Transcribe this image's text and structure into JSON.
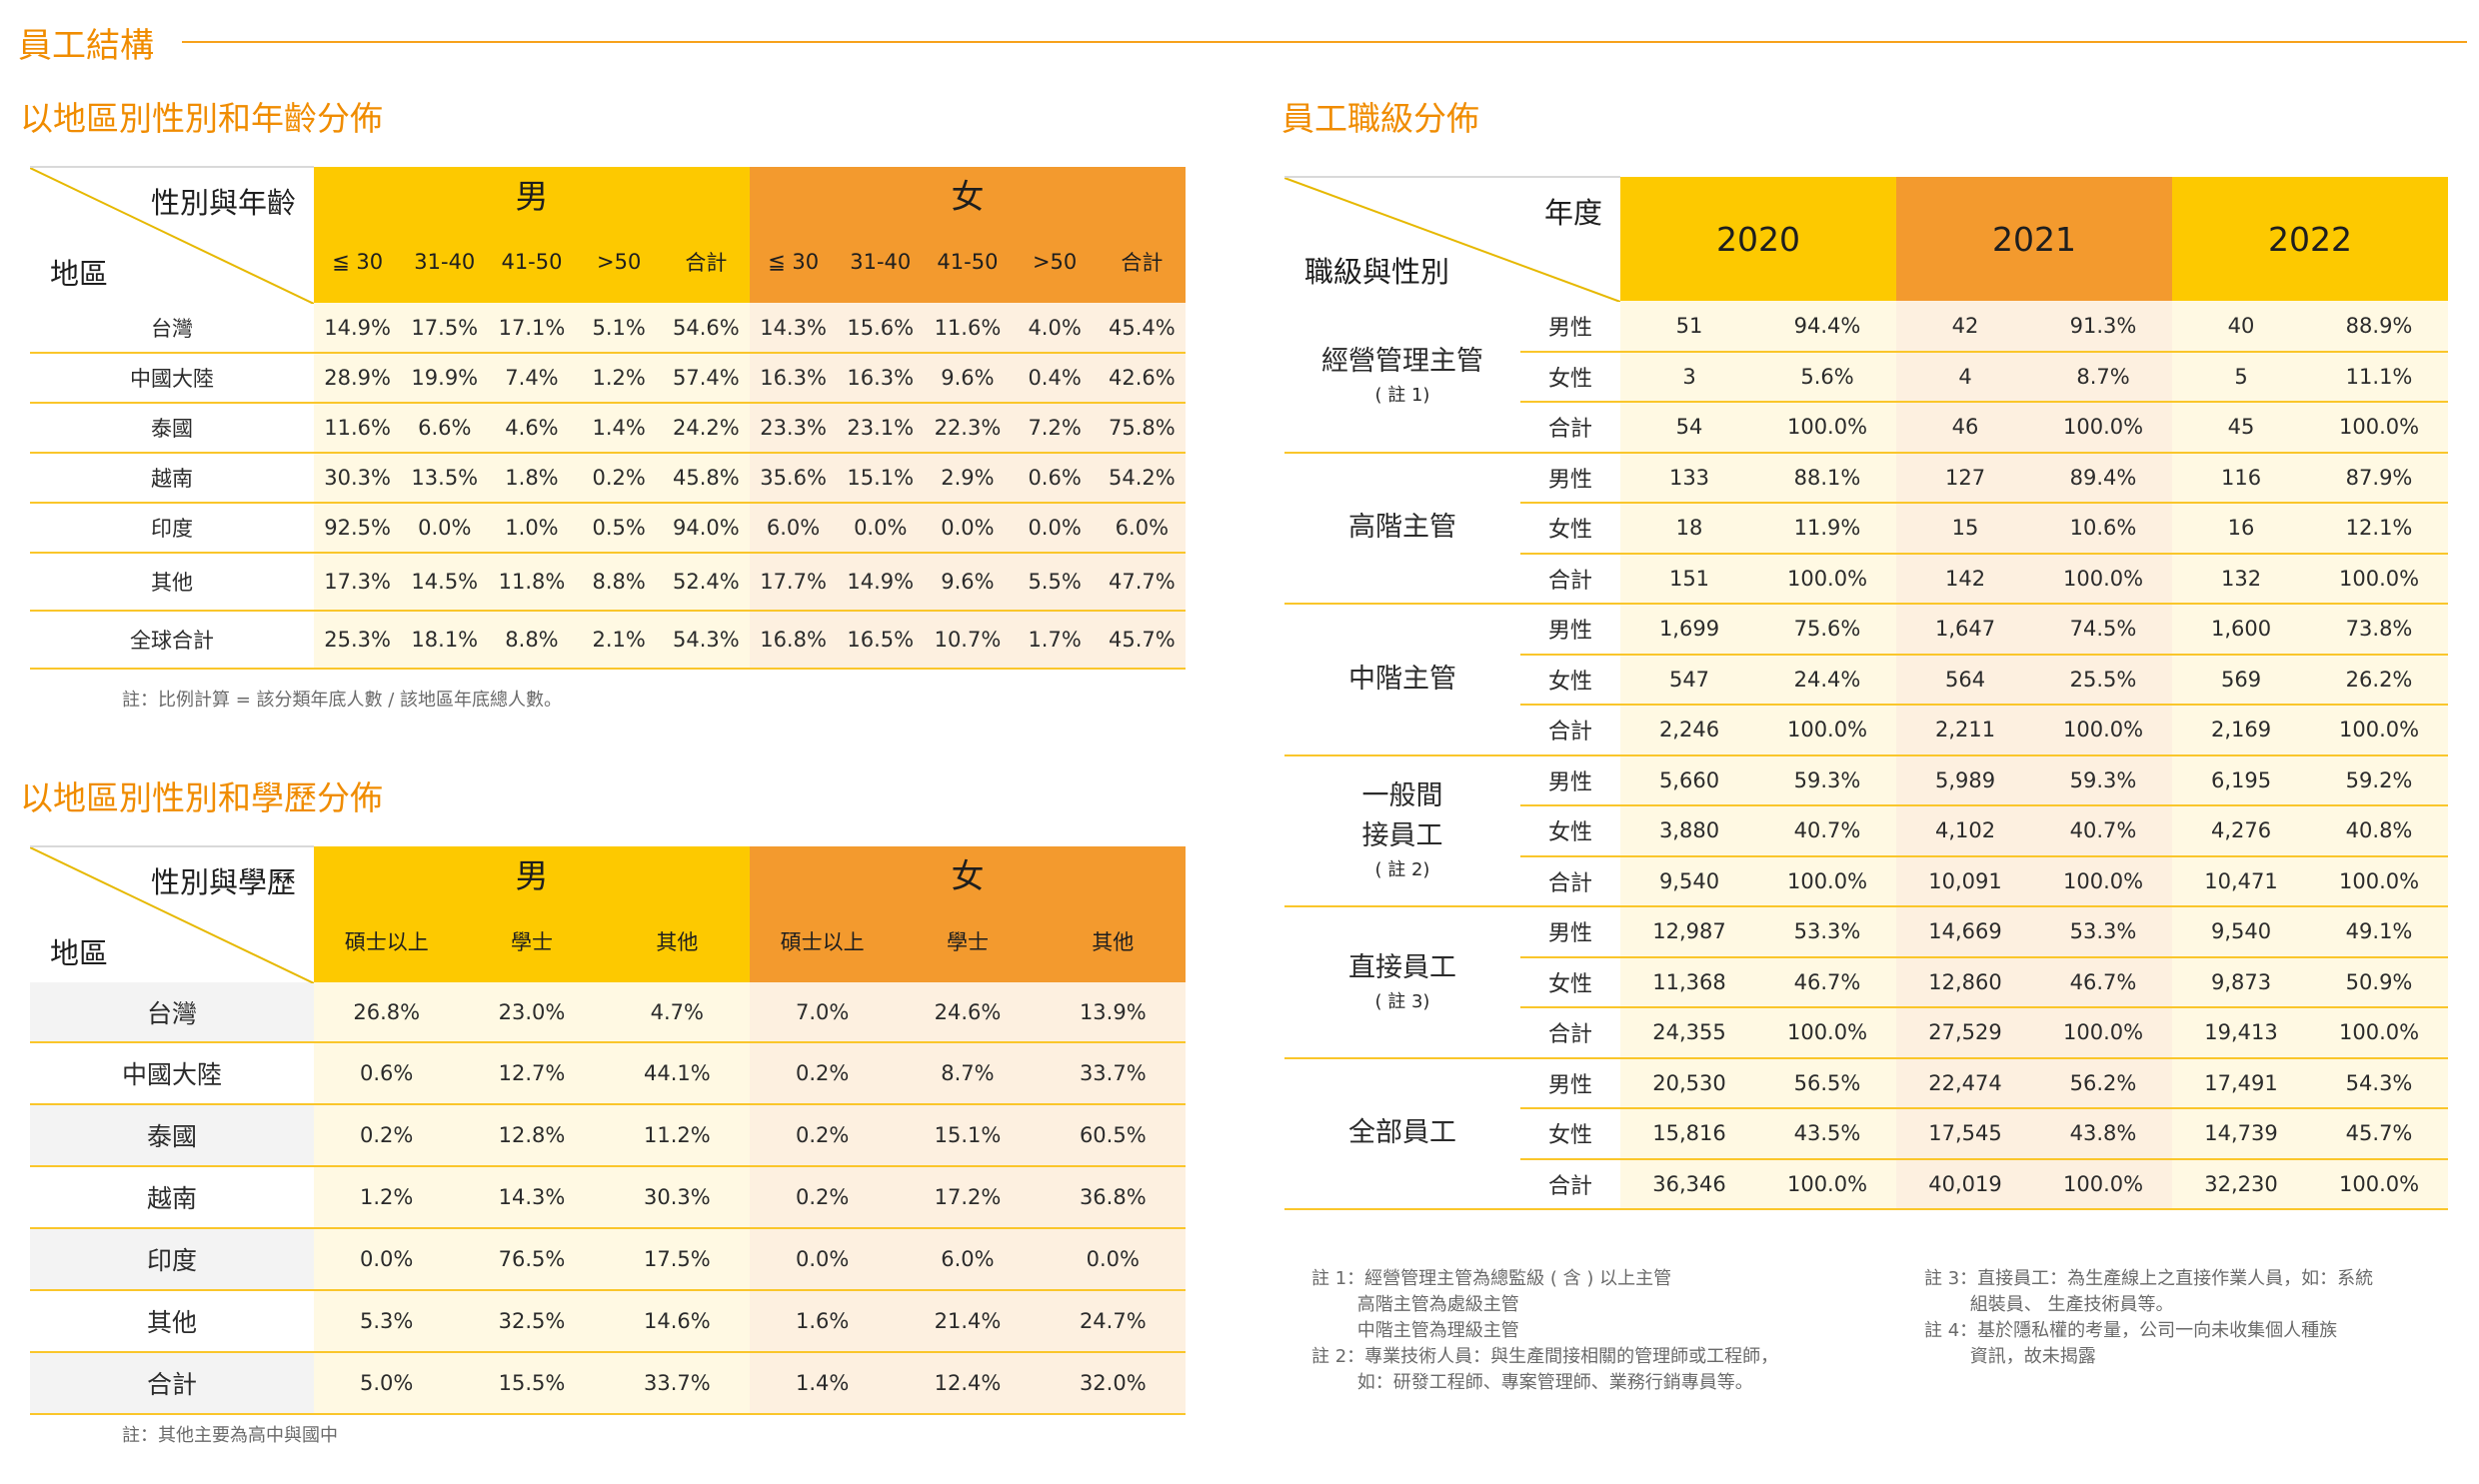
{
  "page": {
    "title": "員工結構"
  },
  "table1": {
    "title": "以地區別性別和年齡分佈",
    "corner_top": "性別與年齡",
    "corner_bottom": "地區",
    "male_label": "男",
    "female_label": "女",
    "subheads": [
      "≦ 30",
      "31-40",
      "41-50",
      ">50",
      "合計",
      "≦ 30",
      "31-40",
      "41-50",
      ">50",
      "合計"
    ],
    "rows": [
      {
        "region": "台灣",
        "values": [
          "14.9%",
          "17.5%",
          "17.1%",
          "5.1%",
          "54.6%",
          "14.3%",
          "15.6%",
          "11.6%",
          "4.0%",
          "45.4%"
        ]
      },
      {
        "region": "中國大陸",
        "values": [
          "28.9%",
          "19.9%",
          "7.4%",
          "1.2%",
          "57.4%",
          "16.3%",
          "16.3%",
          "9.6%",
          "0.4%",
          "42.6%"
        ]
      },
      {
        "region": "泰國",
        "values": [
          "11.6%",
          "6.6%",
          "4.6%",
          "1.4%",
          "24.2%",
          "23.3%",
          "23.1%",
          "22.3%",
          "7.2%",
          "75.8%"
        ]
      },
      {
        "region": "越南",
        "values": [
          "30.3%",
          "13.5%",
          "1.8%",
          "0.2%",
          "45.8%",
          "35.6%",
          "15.1%",
          "2.9%",
          "0.6%",
          "54.2%"
        ]
      },
      {
        "region": "印度",
        "values": [
          "92.5%",
          "0.0%",
          "1.0%",
          "0.5%",
          "94.0%",
          "6.0%",
          "0.0%",
          "0.0%",
          "0.0%",
          "6.0%"
        ]
      },
      {
        "region": "其他",
        "values": [
          "17.3%",
          "14.5%",
          "11.8%",
          "8.8%",
          "52.4%",
          "17.7%",
          "14.9%",
          "9.6%",
          "5.5%",
          "47.7%"
        ]
      },
      {
        "region": "全球合計",
        "values": [
          "25.3%",
          "18.1%",
          "8.8%",
          "2.1%",
          "54.3%",
          "16.8%",
          "16.5%",
          "10.7%",
          "1.7%",
          "45.7%"
        ]
      }
    ],
    "note": "註：比例計算 = 該分類年底人數 / 該地區年底總人數。"
  },
  "table2": {
    "title": "以地區別性別和學歷分佈",
    "corner_top": "性別與學歷",
    "corner_bottom": "地區",
    "male_label": "男",
    "female_label": "女",
    "subheads": [
      "碩士以上",
      "學士",
      "其他",
      "碩士以上",
      "學士",
      "其他"
    ],
    "rows": [
      {
        "region": "台灣",
        "values": [
          "26.8%",
          "23.0%",
          "4.7%",
          "7.0%",
          "24.6%",
          "13.9%"
        ]
      },
      {
        "region": "中國大陸",
        "values": [
          "0.6%",
          "12.7%",
          "44.1%",
          "0.2%",
          "8.7%",
          "33.7%"
        ]
      },
      {
        "region": "泰國",
        "values": [
          "0.2%",
          "12.8%",
          "11.2%",
          "0.2%",
          "15.1%",
          "60.5%"
        ]
      },
      {
        "region": "越南",
        "values": [
          "1.2%",
          "14.3%",
          "30.3%",
          "0.2%",
          "17.2%",
          "36.8%"
        ]
      },
      {
        "region": "印度",
        "values": [
          "0.0%",
          "76.5%",
          "17.5%",
          "0.0%",
          "6.0%",
          "0.0%"
        ]
      },
      {
        "region": "其他",
        "values": [
          "5.3%",
          "32.5%",
          "14.6%",
          "1.6%",
          "21.4%",
          "24.7%"
        ]
      },
      {
        "region": "合計",
        "values": [
          "5.0%",
          "15.5%",
          "33.7%",
          "1.4%",
          "12.4%",
          "32.0%"
        ]
      }
    ],
    "note": "註：其他主要為高中與國中"
  },
  "table3": {
    "title": "員工職級分佈",
    "corner_top": "年度",
    "corner_bottom": "職級與性別",
    "years": [
      "2020",
      "2021",
      "2022"
    ],
    "groups": [
      {
        "name_lines": [
          "經營管理主管"
        ],
        "note": "( 註 1)",
        "rows": [
          {
            "gender": "男性",
            "values": [
              "51",
              "94.4%",
              "42",
              "91.3%",
              "40",
              "88.9%"
            ]
          },
          {
            "gender": "女性",
            "values": [
              "3",
              "5.6%",
              "4",
              "8.7%",
              "5",
              "11.1%"
            ]
          },
          {
            "gender": "合計",
            "values": [
              "54",
              "100.0%",
              "46",
              "100.0%",
              "45",
              "100.0%"
            ]
          }
        ]
      },
      {
        "name_lines": [
          "高階主管"
        ],
        "note": "",
        "rows": [
          {
            "gender": "男性",
            "values": [
              "133",
              "88.1%",
              "127",
              "89.4%",
              "116",
              "87.9%"
            ]
          },
          {
            "gender": "女性",
            "values": [
              "18",
              "11.9%",
              "15",
              "10.6%",
              "16",
              "12.1%"
            ]
          },
          {
            "gender": "合計",
            "values": [
              "151",
              "100.0%",
              "142",
              "100.0%",
              "132",
              "100.0%"
            ]
          }
        ]
      },
      {
        "name_lines": [
          "中階主管"
        ],
        "note": "",
        "rows": [
          {
            "gender": "男性",
            "values": [
              "1,699",
              "75.6%",
              "1,647",
              "74.5%",
              "1,600",
              "73.8%"
            ]
          },
          {
            "gender": "女性",
            "values": [
              "547",
              "24.4%",
              "564",
              "25.5%",
              "569",
              "26.2%"
            ]
          },
          {
            "gender": "合計",
            "values": [
              "2,246",
              "100.0%",
              "2,211",
              "100.0%",
              "2,169",
              "100.0%"
            ]
          }
        ]
      },
      {
        "name_lines": [
          "一般間",
          "接員工"
        ],
        "note": "( 註 2)",
        "rows": [
          {
            "gender": "男性",
            "values": [
              "5,660",
              "59.3%",
              "5,989",
              "59.3%",
              "6,195",
              "59.2%"
            ]
          },
          {
            "gender": "女性",
            "values": [
              "3,880",
              "40.7%",
              "4,102",
              "40.7%",
              "4,276",
              "40.8%"
            ]
          },
          {
            "gender": "合計",
            "values": [
              "9,540",
              "100.0%",
              "10,091",
              "100.0%",
              "10,471",
              "100.0%"
            ]
          }
        ]
      },
      {
        "name_lines": [
          "直接員工"
        ],
        "note": "( 註 3)",
        "rows": [
          {
            "gender": "男性",
            "values": [
              "12,987",
              "53.3%",
              "14,669",
              "53.3%",
              "9,540",
              "49.1%"
            ]
          },
          {
            "gender": "女性",
            "values": [
              "11,368",
              "46.7%",
              "12,860",
              "46.7%",
              "9,873",
              "50.9%"
            ]
          },
          {
            "gender": "合計",
            "values": [
              "24,355",
              "100.0%",
              "27,529",
              "100.0%",
              "19,413",
              "100.0%"
            ]
          }
        ]
      },
      {
        "name_lines": [
          "全部員工"
        ],
        "note": "",
        "rows": [
          {
            "gender": "男性",
            "values": [
              "20,530",
              "56.5%",
              "22,474",
              "56.2%",
              "17,491",
              "54.3%"
            ]
          },
          {
            "gender": "女性",
            "values": [
              "15,816",
              "43.5%",
              "17,545",
              "43.8%",
              "14,739",
              "45.7%"
            ]
          },
          {
            "gender": "合計",
            "values": [
              "36,346",
              "100.0%",
              "40,019",
              "100.0%",
              "32,230",
              "100.0%"
            ]
          }
        ]
      }
    ],
    "notes_left": "註 1：經營管理主管為總監級 ( 含 ) 以上主管\n        高階主管為處級主管\n        中階主管為理級主管\n註 2：專業技術人員：與生產間接相關的管理師或工程師，\n        如：研發工程師、專案管理師、業務行銷專員等。",
    "notes_right": "註 3：直接員工：為生產線上之直接作業人員，如：系統\n        組裝員、 生產技術員等。\n註 4：基於隱私權的考量，公司一向未收集個人種族\n        資訊，故未揭露"
  }
}
